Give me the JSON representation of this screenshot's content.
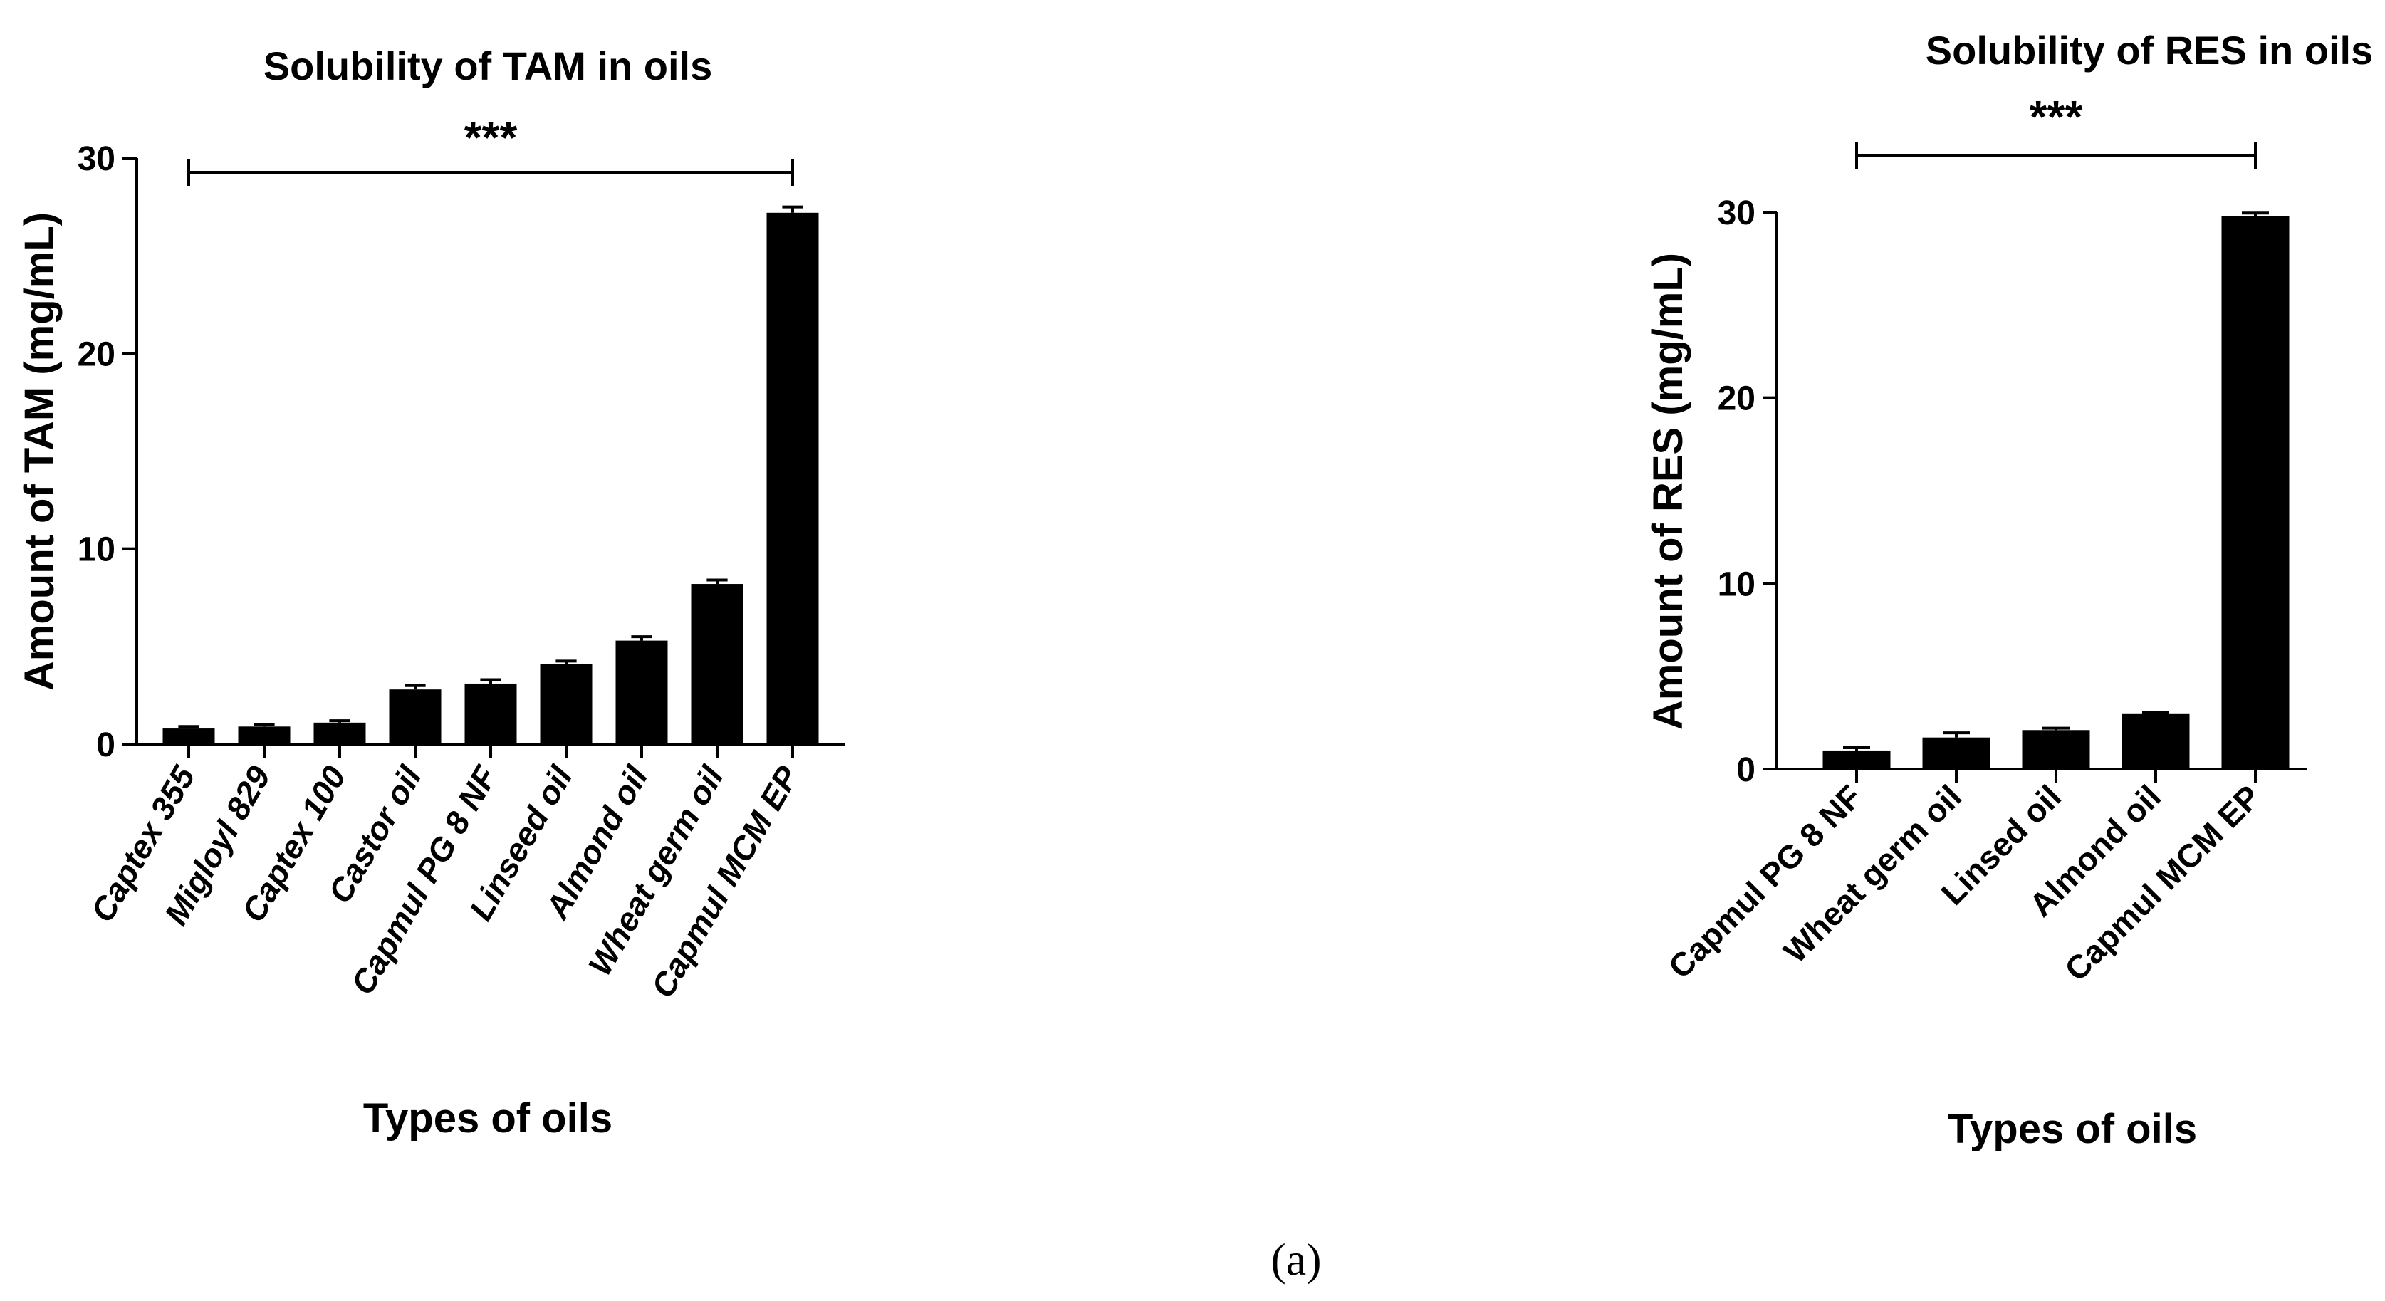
{
  "chart_data": [
    {
      "type": "bar",
      "title": "Solubility of TAM in oils",
      "xlabel": "Types of oils",
      "ylabel": "Amount of TAM (mg/mL)",
      "ylim": [
        0,
        30
      ],
      "yticks": [
        0,
        10,
        20,
        30
      ],
      "ytick_labels": [
        "0",
        "10",
        "20",
        "30"
      ],
      "categories": [
        "Captex 355",
        "Migloyl 829",
        "Captex 100",
        "Castor oil",
        "Capmul PG 8 NF",
        "Linseed oil",
        "Almond oil",
        "Wheat germ oil",
        "Capmul MCM EP"
      ],
      "values": [
        0.8,
        0.9,
        1.1,
        2.8,
        3.1,
        4.1,
        5.3,
        8.2,
        27.2
      ],
      "errors": [
        0.1,
        0.1,
        0.1,
        0.2,
        0.2,
        0.15,
        0.2,
        0.2,
        0.3
      ],
      "category_label_style": "italic",
      "significance": {
        "label": "***",
        "from": "Captex 355",
        "to": "Capmul MCM EP"
      },
      "bar_color": "#000000",
      "grid": false
    },
    {
      "type": "bar",
      "title": "Solubility of RES in oils",
      "xlabel": "Types of oils",
      "ylabel": "Amount of RES (mg/mL)",
      "ylim": [
        0,
        30
      ],
      "yticks": [
        0,
        10,
        20,
        30
      ],
      "ytick_labels": [
        "0",
        "10",
        "20",
        "30"
      ],
      "categories": [
        "Capmul PG 8 NF",
        "Wheat germ oil",
        "Linsed oil",
        "Almond oil",
        "Capmul MCM EP"
      ],
      "values": [
        1.0,
        1.7,
        2.1,
        3.0,
        29.8
      ],
      "errors": [
        0.15,
        0.25,
        0.1,
        0.05,
        0.15
      ],
      "category_label_style": "normal",
      "significance": {
        "label": "***",
        "from": "Capmul PG 8 NF",
        "to": "Capmul MCM EP"
      },
      "bar_color": "#000000",
      "grid": false
    }
  ],
  "figure": {
    "panel_label": "(a)"
  }
}
